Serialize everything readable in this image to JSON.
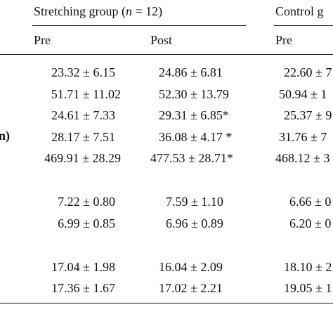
{
  "table": {
    "group_stretching": "Stretching group (",
    "group_stretching_n": "n",
    "group_stretching_count": " = 12)",
    "group_control": "Control g",
    "sub_headers": {
      "pre": "Pre",
      "post": "Post",
      "control_pre": "Pre"
    },
    "row_label_fragment": "n)",
    "rows": [
      {
        "pre": "23.32 ± 6.15",
        "post": "24.86 ± 6.81",
        "control_pre": "22.60 ± 7"
      },
      {
        "pre": "51.71 ± 11.02",
        "post": "52.30 ± 13.79",
        "control_pre": "50.94 ± 1"
      },
      {
        "pre": "24.61 ± 7.33",
        "post": "29.31 ± 6.85*",
        "control_pre": "25.37 ± 9"
      },
      {
        "pre": "28.17 ± 7.51",
        "post": "36.08 ± 4.17 *",
        "control_pre": "31.76 ± 7"
      },
      {
        "pre": "469.91 ± 28.29",
        "post": "477.53 ± 28.71*",
        "control_pre": "468.12 ± 3"
      },
      {
        "pre": "7.22 ± 0.80",
        "post": "7.59 ± 1.10",
        "control_pre": "6.66 ± 0"
      },
      {
        "pre": "6.99 ± 0.85",
        "post": "6.96 ± 0.89",
        "control_pre": "6.20 ± 0"
      },
      {
        "pre": "17.04 ± 1.98",
        "post": "16.04 ± 2.09",
        "control_pre": "18.10 ± 2"
      },
      {
        "pre": "17.36 ± 1.67",
        "post": "17.02 ± 2.21",
        "control_pre": "19.05 ± 1"
      }
    ]
  }
}
